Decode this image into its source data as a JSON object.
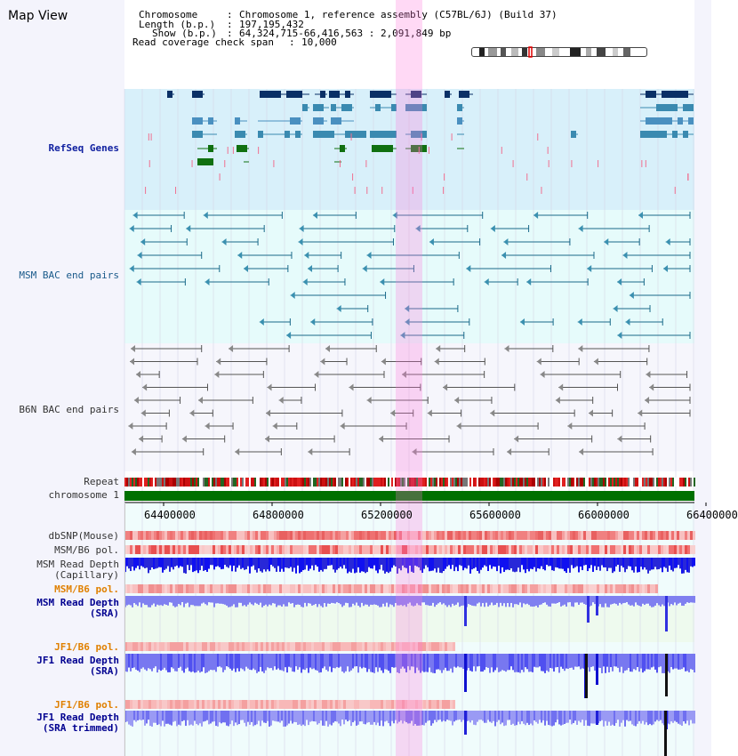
{
  "app": {
    "title": "Map View"
  },
  "info": {
    "chromosome_label": "Chromosome",
    "chromosome_value": "Chromosome 1, reference assembly (C57BL/6J) (Build 37)",
    "length_label": "Length (b.p.)",
    "length_value": "197,195,432",
    "show_label": "Show (b.p.)",
    "show_value": "64,324,715-66,416,563 : 2,091,849 bp",
    "span_label": "Read coverage check span",
    "span_value": "10,000"
  },
  "tracks": {
    "refseq": "RefSeq Genes",
    "msm_bac": "MSM BAC end pairs",
    "b6n_bac": "B6N BAC end pairs",
    "repeat": "Repeat",
    "chromosome": "chromosome 1",
    "dbsnp": "dbSNP(Mouse)",
    "msm_b6_pol": "MSM/B6 pol.",
    "msm_depth_cap": "MSM Read Depth\n(Capillary)",
    "msm_b6_pol2": "MSM/B6 pol.",
    "msm_depth_sra": "MSM Read Depth\n(SRA)",
    "jf1_b6_pol": "JF1/B6 pol.",
    "jf1_depth_sra": "JF1 Read Depth\n(SRA)",
    "jf1_b6_pol2": "JF1/B6 pol.",
    "jf1_depth_trim": "JF1 Read Depth\n(SRA trimmed)"
  },
  "axis": {
    "ticks": [
      "64400000",
      "64800000",
      "65200000",
      "65600000",
      "66000000",
      "66400000"
    ]
  },
  "colors": {
    "refseq_bg": "#d8f0fa",
    "msm_bg": "#e6fbfb",
    "b6n_bg": "#f6f6fc",
    "chrom": "#007000",
    "highlight": "#ff78dc"
  }
}
